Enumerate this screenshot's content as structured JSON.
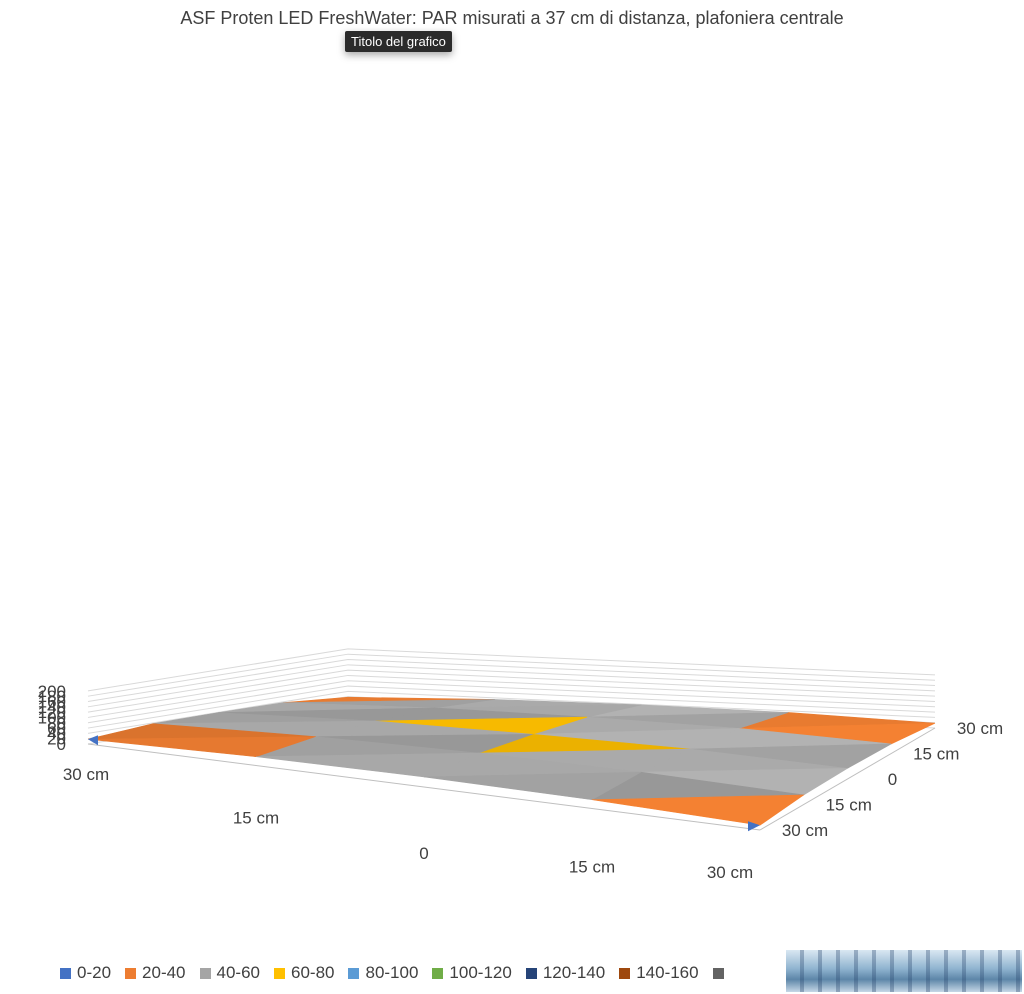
{
  "chart": {
    "title": "ASF Proten LED FreshWater: PAR misurati a 37 cm di distanza, plafoniera centrale",
    "tooltip": "Titolo del grafico"
  },
  "legend": {
    "items": [
      {
        "label": "0-20",
        "color": "#4472C4"
      },
      {
        "label": "20-40",
        "color": "#ED7D31"
      },
      {
        "label": "40-60",
        "color": "#A5A5A5"
      },
      {
        "label": "60-80",
        "color": "#FFC000"
      },
      {
        "label": "80-100",
        "color": "#5B9BD5"
      },
      {
        "label": "100-120",
        "color": "#70AD47"
      },
      {
        "label": "120-140",
        "color": "#264478"
      },
      {
        "label": "140-160",
        "color": "#9E480E"
      },
      {
        "label": "",
        "color": "#636363"
      }
    ]
  },
  "chart_data": {
    "type": "surface",
    "title": "ASF Proten LED FreshWater: PAR misurati a 37 cm di distanza, plafoniera centrale",
    "z_ticks": [
      0,
      20,
      40,
      60,
      80,
      100,
      120,
      140,
      160,
      180,
      200
    ],
    "zlim": [
      0,
      200
    ],
    "x_categories": [
      "30 cm",
      "15 cm",
      "0",
      "15 cm",
      "30 cm"
    ],
    "y_categories": [
      "30 cm",
      "15 cm",
      "0",
      "15 cm",
      "30 cm"
    ],
    "grid": true,
    "legend_position": "bottom",
    "values": [
      [
        18,
        33,
        38,
        33,
        18
      ],
      [
        37,
        55,
        60,
        55,
        36
      ],
      [
        39,
        60,
        63,
        60,
        40
      ],
      [
        37,
        56,
        60,
        56,
        36
      ],
      [
        18,
        34,
        38,
        34,
        18
      ]
    ],
    "bands": [
      "0-20",
      "20-40",
      "40-60",
      "60-80",
      "80-100",
      "100-120",
      "120-140",
      "140-160"
    ]
  }
}
